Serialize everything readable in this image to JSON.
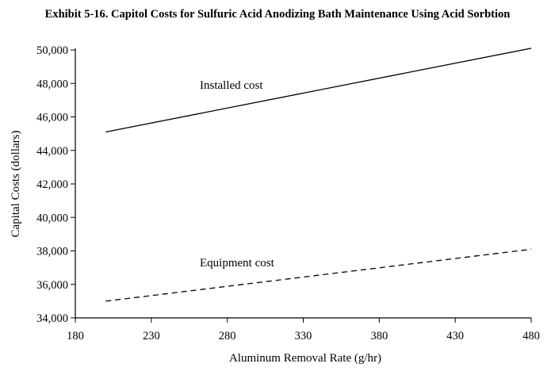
{
  "chart_data": {
    "type": "line",
    "title": "Exhibit 5-16. Capitol Costs for Sulfuric Acid Anodizing Bath Maintenance Using Acid Sorbtion",
    "xlabel": "Aluminum Removal Rate (g/hr)",
    "ylabel": "Capital Costs (dollars)",
    "xlim": [
      180,
      480
    ],
    "ylim": [
      34000,
      50000
    ],
    "xticks": [
      180,
      230,
      280,
      330,
      380,
      430,
      480
    ],
    "xtick_labels": [
      "180",
      "230",
      "280",
      "330",
      "380",
      "430",
      "480"
    ],
    "yticks": [
      34000,
      36000,
      38000,
      40000,
      42000,
      44000,
      46000,
      48000,
      50000
    ],
    "ytick_labels": [
      "34,000",
      "36,000",
      "38,000",
      "40,000",
      "42,000",
      "44,000",
      "46,000",
      "48,000",
      "50,000"
    ],
    "grid": false,
    "legend": "none",
    "series": [
      {
        "name": "Installed cost",
        "style": "solid",
        "color": "#000000",
        "x": [
          200,
          480
        ],
        "y": [
          45100,
          50100
        ]
      },
      {
        "name": "Equipment cost",
        "style": "dashed",
        "color": "#000000",
        "x": [
          200,
          480
        ],
        "y": [
          35000,
          38100
        ]
      }
    ]
  }
}
